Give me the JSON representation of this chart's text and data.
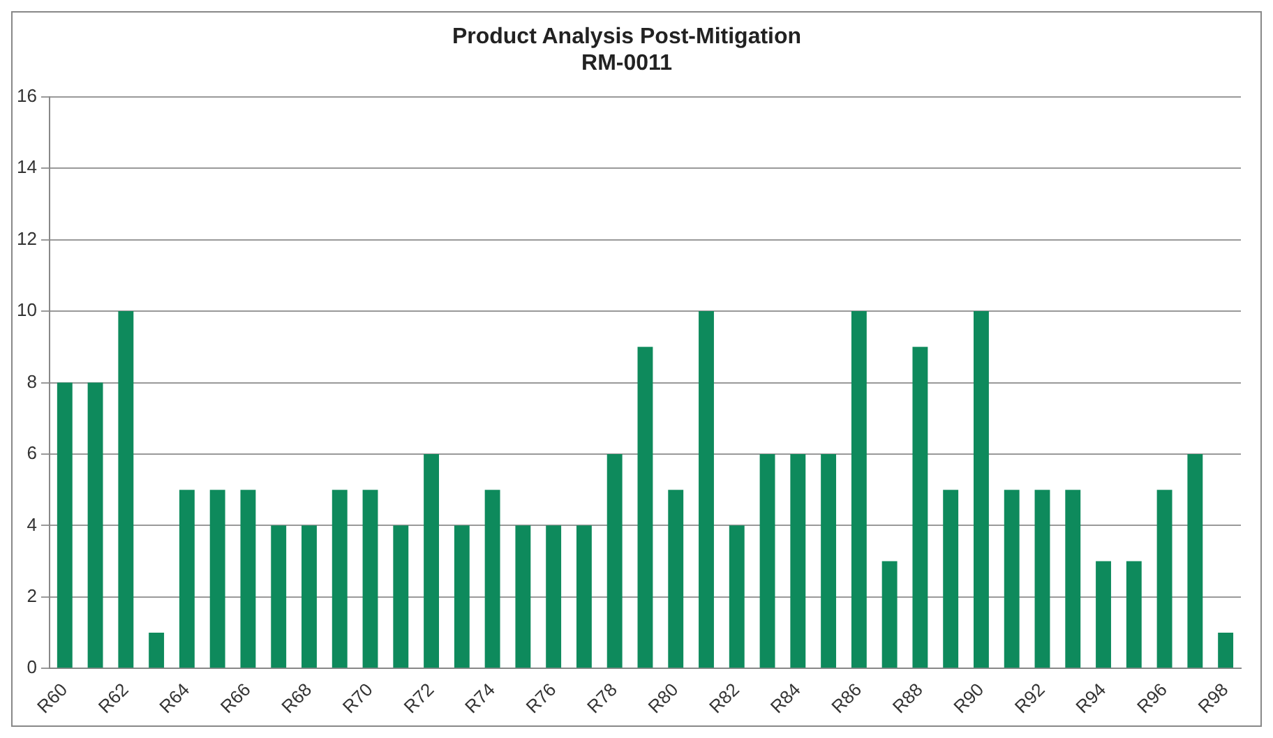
{
  "chart_data": {
    "type": "bar",
    "title": "Product Analysis Post-Mitigation",
    "subtitle": "RM-0011",
    "categories": [
      "R60",
      null,
      "R62",
      null,
      "R64",
      null,
      "R66",
      null,
      "R68",
      null,
      "R70",
      null,
      "R72",
      null,
      "R74",
      null,
      "R76",
      null,
      "R78",
      null,
      "R80",
      null,
      "R82",
      null,
      "R84",
      null,
      "R86",
      null,
      "R88",
      null,
      "R90",
      null,
      "R92",
      null,
      "R94",
      null,
      "R96",
      null,
      "R98"
    ],
    "values": [
      8,
      8,
      10,
      1,
      5,
      5,
      5,
      4,
      4,
      5,
      5,
      4,
      6,
      4,
      5,
      4,
      4,
      4,
      6,
      9,
      5,
      10,
      4,
      6,
      6,
      6,
      10,
      3,
      9,
      5,
      10,
      5,
      5,
      5,
      3,
      3,
      5,
      6,
      1
    ],
    "color": "#0e8a5c",
    "ylim": [
      0,
      16
    ],
    "yticks": [
      0,
      2,
      4,
      6,
      8,
      10,
      12,
      14,
      16
    ],
    "grid": "y",
    "legend": false
  }
}
